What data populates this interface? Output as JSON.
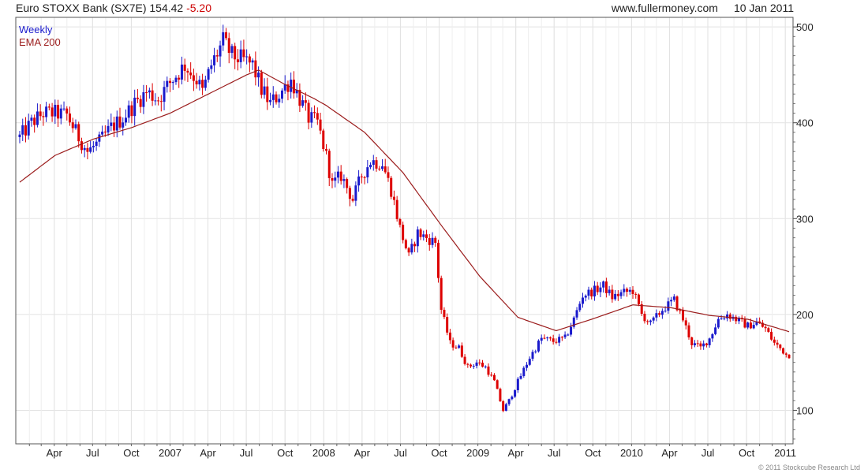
{
  "header": {
    "instrument": "Euro STOXX Bank (SX7E) 154.42",
    "change": "-5.20",
    "site": "www.fullermoney.com",
    "date": "10 Jan 2011"
  },
  "footer": "© 2011 Stockcube Research Ltd",
  "colors": {
    "up": "#1a1acc",
    "down": "#dd0000",
    "ema": "#9b1c1c",
    "grid": "#e2e2e2"
  },
  "chart_data": {
    "type": "line",
    "title": "Euro STOXX Bank (SX7E)",
    "frequency_label": "Weekly",
    "ema_label": "EMA 200",
    "y_ticks": [
      100,
      200,
      300,
      400,
      500
    ],
    "ylim": [
      65,
      510
    ],
    "x_tick_labels": [
      "Apr",
      "Jul",
      "Oct",
      "2007",
      "Apr",
      "Jul",
      "Oct",
      "2008",
      "Apr",
      "Jul",
      "Oct",
      "2009",
      "Apr",
      "Jul",
      "Oct",
      "2010",
      "Apr",
      "Jul",
      "Oct",
      "2011"
    ],
    "x_range": [
      "2006-01-09",
      "2011-01-10"
    ],
    "weekly_close_anchors": [
      [
        "2006-01-09",
        385
      ],
      [
        "2006-02-06",
        400
      ],
      [
        "2006-03-06",
        410
      ],
      [
        "2006-04-03",
        410
      ],
      [
        "2006-05-01",
        408
      ],
      [
        "2006-05-29",
        385
      ],
      [
        "2006-06-19",
        370
      ],
      [
        "2006-07-17",
        380
      ],
      [
        "2006-08-14",
        395
      ],
      [
        "2006-09-11",
        405
      ],
      [
        "2006-10-09",
        420
      ],
      [
        "2006-11-06",
        432
      ],
      [
        "2006-12-04",
        425
      ],
      [
        "2007-01-01",
        442
      ],
      [
        "2007-02-05",
        460
      ],
      [
        "2007-03-05",
        445
      ],
      [
        "2007-03-19",
        432
      ],
      [
        "2007-04-09",
        460
      ],
      [
        "2007-05-07",
        485
      ],
      [
        "2007-05-28",
        470
      ],
      [
        "2007-06-25",
        465
      ],
      [
        "2007-07-16",
        460
      ],
      [
        "2007-08-06",
        435
      ],
      [
        "2007-08-27",
        420
      ],
      [
        "2007-09-17",
        430
      ],
      [
        "2007-10-15",
        445
      ],
      [
        "2007-11-05",
        425
      ],
      [
        "2007-11-26",
        405
      ],
      [
        "2007-12-17",
        400
      ],
      [
        "2008-01-07",
        365
      ],
      [
        "2008-01-21",
        335
      ],
      [
        "2008-02-11",
        345
      ],
      [
        "2008-03-10",
        320
      ],
      [
        "2008-03-31",
        345
      ],
      [
        "2008-04-21",
        360
      ],
      [
        "2008-05-19",
        358
      ],
      [
        "2008-06-09",
        330
      ],
      [
        "2008-06-30",
        290
      ],
      [
        "2008-07-21",
        260
      ],
      [
        "2008-08-11",
        285
      ],
      [
        "2008-09-01",
        280
      ],
      [
        "2008-09-22",
        275
      ],
      [
        "2008-10-06",
        205
      ],
      [
        "2008-10-27",
        170
      ],
      [
        "2008-11-17",
        165
      ],
      [
        "2008-12-08",
        145
      ],
      [
        "2008-12-29",
        150
      ],
      [
        "2009-01-19",
        145
      ],
      [
        "2009-02-09",
        130
      ],
      [
        "2009-03-02",
        100
      ],
      [
        "2009-03-16",
        110
      ],
      [
        "2009-04-06",
        130
      ],
      [
        "2009-05-04",
        155
      ],
      [
        "2009-06-01",
        175
      ],
      [
        "2009-06-29",
        172
      ],
      [
        "2009-07-27",
        175
      ],
      [
        "2009-08-17",
        195
      ],
      [
        "2009-09-07",
        220
      ],
      [
        "2009-10-05",
        225
      ],
      [
        "2009-10-26",
        230
      ],
      [
        "2009-11-16",
        218
      ],
      [
        "2009-12-07",
        222
      ],
      [
        "2010-01-04",
        225
      ],
      [
        "2010-01-25",
        200
      ],
      [
        "2010-02-15",
        190
      ],
      [
        "2010-03-15",
        205
      ],
      [
        "2010-04-12",
        215
      ],
      [
        "2010-05-03",
        195
      ],
      [
        "2010-05-24",
        170
      ],
      [
        "2010-06-14",
        165
      ],
      [
        "2010-07-05",
        175
      ],
      [
        "2010-07-26",
        195
      ],
      [
        "2010-08-16",
        200
      ],
      [
        "2010-09-06",
        195
      ],
      [
        "2010-10-04",
        188
      ],
      [
        "2010-10-25",
        192
      ],
      [
        "2010-11-15",
        185
      ],
      [
        "2010-12-06",
        170
      ],
      [
        "2010-12-27",
        162
      ],
      [
        "2011-01-10",
        154.42
      ]
    ],
    "ema200_anchors": [
      [
        "2006-01-09",
        338
      ],
      [
        "2006-04-03",
        366
      ],
      [
        "2006-07-03",
        383
      ],
      [
        "2006-10-02",
        395
      ],
      [
        "2007-01-01",
        410
      ],
      [
        "2007-04-02",
        430
      ],
      [
        "2007-07-02",
        450
      ],
      [
        "2007-07-30",
        455
      ],
      [
        "2007-10-01",
        440
      ],
      [
        "2007-12-10",
        425
      ],
      [
        "2008-01-07",
        418
      ],
      [
        "2008-04-07",
        390
      ],
      [
        "2008-07-07",
        348
      ],
      [
        "2008-10-06",
        293
      ],
      [
        "2009-01-05",
        240
      ],
      [
        "2009-04-06",
        197
      ],
      [
        "2009-07-06",
        183
      ],
      [
        "2009-10-05",
        196
      ],
      [
        "2010-01-04",
        210
      ],
      [
        "2010-04-05",
        207
      ],
      [
        "2010-07-05",
        199
      ],
      [
        "2010-10-04",
        195
      ],
      [
        "2011-01-10",
        182
      ]
    ]
  }
}
